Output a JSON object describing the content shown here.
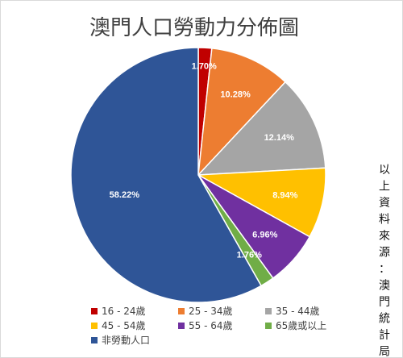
{
  "chart_data": {
    "type": "pie",
    "title": "澳門人口勞動力分佈圖",
    "categories": [
      "16 - 24歲",
      "25 - 34歲",
      "35 - 44歲",
      "45 - 54歲",
      "55 - 64歲",
      "65歲或以上",
      "非勞動人口"
    ],
    "values": [
      1.7,
      10.28,
      12.14,
      8.94,
      6.96,
      1.76,
      58.22
    ],
    "value_labels": [
      "1.70%",
      "10.28%",
      "12.14%",
      "8.94%",
      "6.96%",
      "1.76%",
      "58.22%"
    ],
    "unit": "%",
    "colors": [
      "#c00000",
      "#ed7d31",
      "#a5a5a5",
      "#ffc000",
      "#7030a0",
      "#70ad47",
      "#2f5597"
    ],
    "label_colors": [
      "#ffffff",
      "#ffffff",
      "#ffffff",
      "#ffffff",
      "#ffffff",
      "#ffffff",
      "#ffffff"
    ],
    "legend_position": "bottom",
    "start": "12 o'clock",
    "direction": "clockwise"
  },
  "source_note": "以上資料來源：澳門統計局"
}
